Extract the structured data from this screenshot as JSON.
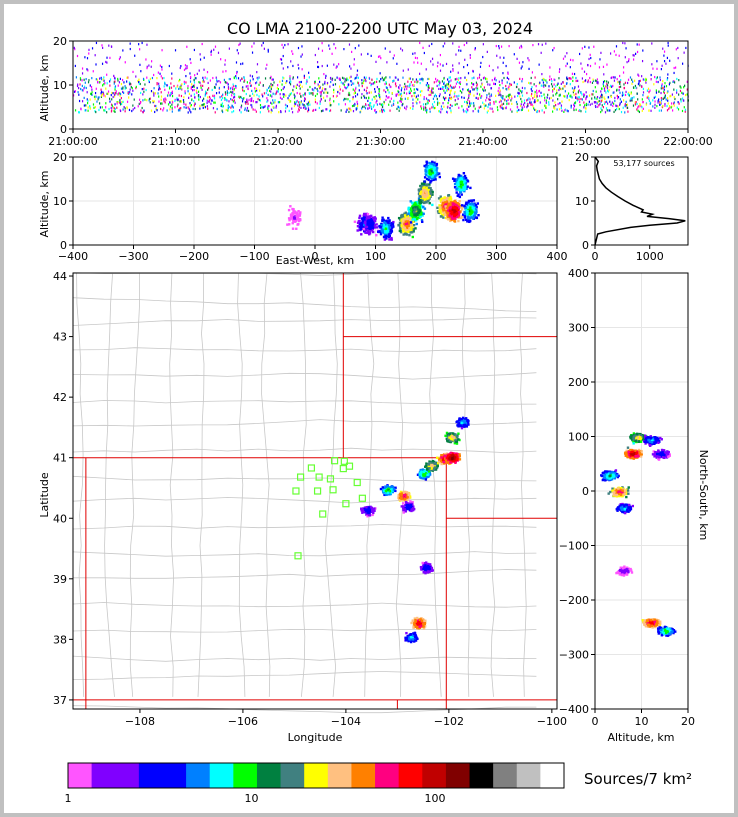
{
  "title": "CO LMA 2100-2200 UTC May 03, 2024",
  "chart_data": [
    {
      "panel": "time-altitude",
      "type": "scatter",
      "ylabel": "Altitude, km",
      "x_ticks": [
        "21:00:00",
        "21:10:00",
        "21:20:00",
        "21:30:00",
        "21:40:00",
        "21:50:00",
        "22:00:00"
      ],
      "xlim": [
        "21:00:00",
        "22:00:00"
      ],
      "ylim": [
        0,
        20
      ],
      "y_ticks": [
        0,
        10,
        20
      ],
      "source_band_km": [
        2,
        20
      ],
      "dense_band_km": [
        4,
        12
      ]
    },
    {
      "panel": "east-west-altitude",
      "type": "heatmap",
      "xlabel": "East-West, km",
      "ylabel": "Altitude, km",
      "xlim": [
        -400,
        400
      ],
      "ylim": [
        0,
        20
      ],
      "x_ticks": [
        -400,
        -300,
        -200,
        -100,
        0,
        100,
        200,
        300,
        400
      ],
      "y_ticks": [
        0,
        10,
        20
      ],
      "grid": true,
      "cells": [
        {
          "x": 80,
          "z": 5,
          "level": 0.35
        },
        {
          "x": 90,
          "z": 5,
          "level": 0.3
        },
        {
          "x": 115,
          "z": 4,
          "level": 0.45
        },
        {
          "x": 150,
          "z": 5,
          "level": 0.8
        },
        {
          "x": 165,
          "z": 8,
          "level": 0.6
        },
        {
          "x": 180,
          "z": 12,
          "level": 0.75
        },
        {
          "x": 190,
          "z": 17,
          "level": 0.5
        },
        {
          "x": 215,
          "z": 9,
          "level": 0.85
        },
        {
          "x": 228,
          "z": 8,
          "level": 0.95
        },
        {
          "x": 240,
          "z": 14,
          "level": 0.5
        },
        {
          "x": 255,
          "z": 8,
          "level": 0.5
        },
        {
          "x": -35,
          "z": 6.5,
          "level": 0.1
        }
      ]
    },
    {
      "panel": "altitude-histogram",
      "type": "line",
      "annotation": "53,177 sources",
      "xlim": [
        0,
        1700
      ],
      "ylim": [
        0,
        20
      ],
      "x_ticks": [
        0,
        1000
      ],
      "y_ticks": [
        0,
        10,
        20
      ],
      "altitude_km": [
        0,
        2.5,
        3,
        4,
        4.5,
        5,
        5.5,
        6,
        6.5,
        7,
        7.5,
        8,
        9,
        10,
        11,
        12,
        13,
        14,
        15,
        16,
        17,
        18,
        19,
        20
      ],
      "counts": [
        0,
        50,
        200,
        650,
        1000,
        1500,
        1650,
        1350,
        950,
        1050,
        850,
        880,
        700,
        550,
        420,
        300,
        200,
        130,
        80,
        60,
        40,
        30,
        60,
        0
      ]
    },
    {
      "panel": "plan-view",
      "type": "scatter",
      "xlabel": "Longitude",
      "ylabel": "Latitude",
      "xlim": [
        -109.3,
        -99.9
      ],
      "ylim": [
        36.85,
        44.05
      ],
      "x_ticks": [
        -108,
        -106,
        -104,
        -102,
        -100
      ],
      "y_ticks": [
        37,
        38,
        39,
        40,
        41,
        42,
        43,
        44
      ],
      "stations": [
        {
          "lon": -104.88,
          "lat": 40.68
        },
        {
          "lon": -104.67,
          "lat": 40.83
        },
        {
          "lon": -104.97,
          "lat": 40.45
        },
        {
          "lon": -104.52,
          "lat": 40.68
        },
        {
          "lon": -104.55,
          "lat": 40.45
        },
        {
          "lon": -104.3,
          "lat": 40.65
        },
        {
          "lon": -104.25,
          "lat": 40.47
        },
        {
          "lon": -104.22,
          "lat": 40.95
        },
        {
          "lon": -104.05,
          "lat": 40.82
        },
        {
          "lon": -104.03,
          "lat": 40.94
        },
        {
          "lon": -103.93,
          "lat": 40.86
        },
        {
          "lon": -103.78,
          "lat": 40.59
        },
        {
          "lon": -103.68,
          "lat": 40.33
        },
        {
          "lon": -104.0,
          "lat": 40.24
        },
        {
          "lon": -104.45,
          "lat": 40.07
        },
        {
          "lon": -104.93,
          "lat": 39.38
        }
      ],
      "cells": [
        {
          "lon": -103.6,
          "lat": 40.15,
          "level": 0.3
        },
        {
          "lon": -103.2,
          "lat": 40.48,
          "level": 0.5
        },
        {
          "lon": -102.9,
          "lat": 40.38,
          "level": 0.85
        },
        {
          "lon": -102.8,
          "lat": 40.2,
          "level": 0.3
        },
        {
          "lon": -102.5,
          "lat": 40.75,
          "level": 0.5
        },
        {
          "lon": -102.35,
          "lat": 40.88,
          "level": 0.7
        },
        {
          "lon": -102.1,
          "lat": 41.0,
          "level": 0.9
        },
        {
          "lon": -101.95,
          "lat": 41.02,
          "level": 1.0
        },
        {
          "lon": -101.95,
          "lat": 41.35,
          "level": 0.7
        },
        {
          "lon": -101.75,
          "lat": 41.6,
          "level": 0.4
        },
        {
          "lon": -102.45,
          "lat": 39.2,
          "level": 0.3
        },
        {
          "lon": -102.6,
          "lat": 38.28,
          "level": 0.9
        },
        {
          "lon": -102.75,
          "lat": 38.05,
          "level": 0.4
        }
      ]
    },
    {
      "panel": "altitude-north-south",
      "type": "heatmap",
      "xlabel": "Altitude, km",
      "ylabel": "North-South, km",
      "xlim": [
        0,
        20
      ],
      "ylim": [
        -400,
        400
      ],
      "x_ticks": [
        0,
        10,
        20
      ],
      "y_ticks": [
        -400,
        -300,
        -200,
        -100,
        0,
        100,
        200,
        300,
        400
      ],
      "grid": true,
      "cells": [
        {
          "z": 9,
          "y": 100,
          "level": 0.7
        },
        {
          "z": 8,
          "y": 70,
          "level": 0.95
        },
        {
          "z": 5,
          "y": 0,
          "level": 0.85
        },
        {
          "z": 3,
          "y": 30,
          "level": 0.5
        },
        {
          "z": 12,
          "y": 95,
          "level": 0.4
        },
        {
          "z": 14,
          "y": 70,
          "level": 0.3
        },
        {
          "z": 6,
          "y": -30,
          "level": 0.4
        },
        {
          "z": 12,
          "y": -240,
          "level": 0.9
        },
        {
          "z": 15,
          "y": -255,
          "level": 0.5
        },
        {
          "z": 6,
          "y": -145,
          "level": 0.2
        }
      ]
    }
  ],
  "colorbar": {
    "label": "Sources/7 km²",
    "tick_labels": [
      "1",
      "10",
      "100"
    ],
    "colors": [
      "#ff55ff",
      "#8000ff",
      "#8000ff",
      "#0000ff",
      "#0000ff",
      "#0080ff",
      "#00ffff",
      "#00ff00",
      "#008040",
      "#408080",
      "#ffff00",
      "#ffc080",
      "#ff8000",
      "#ff0080",
      "#ff0000",
      "#c00000",
      "#800000",
      "#000000",
      "#808080",
      "#c0c0c0",
      "#ffffff"
    ]
  }
}
